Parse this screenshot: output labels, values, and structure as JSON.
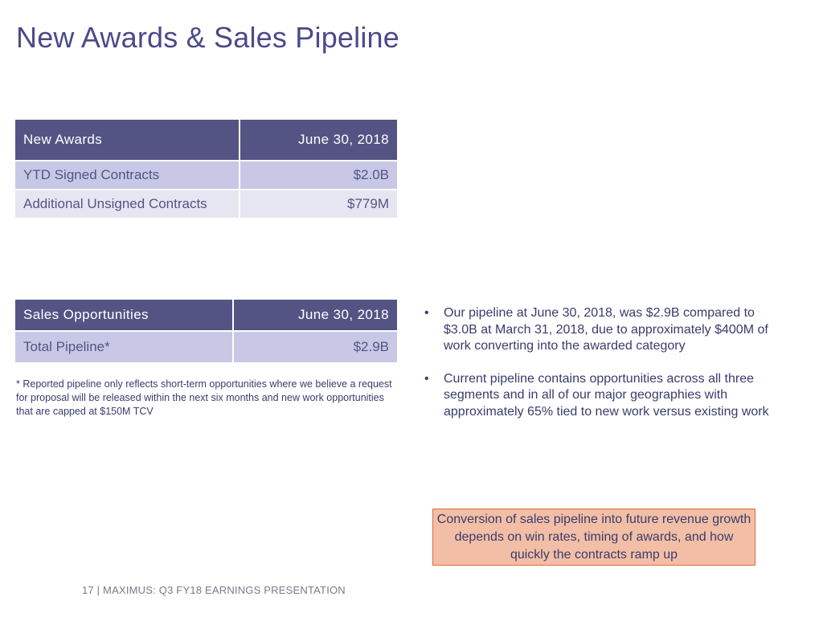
{
  "title": "New Awards & Sales Pipeline",
  "new_awards": {
    "headers": [
      "New Awards",
      "June 30, 2018"
    ],
    "rows": [
      {
        "label": "YTD Signed Contracts",
        "value": "$2.0B"
      },
      {
        "label": "Additional Unsigned Contracts",
        "value": "$779M"
      }
    ]
  },
  "sales_opportunities": {
    "headers": [
      "Sales Opportunities",
      "June 30, 2018"
    ],
    "rows": [
      {
        "label": "Total Pipeline*",
        "value": "$2.9B"
      }
    ]
  },
  "footnote": "* Reported pipeline only reflects short-term opportunities where we believe a request for proposal will be released within the next six months and new work opportunities that are capped at $150M TCV",
  "bullets": [
    "Our pipeline at June 30, 2018, was $2.9B compared to $3.0B at March 31, 2018, due to approximately $400M of work converting into the awarded category",
    "Current pipeline contains opportunities across all three segments and in all of our major geographies with approximately 65% tied to new work versus existing work"
  ],
  "bullet_glyph": "•",
  "callout": "Conversion of sales pipeline into future revenue growth depends on win rates, timing of awards, and how quickly the contracts ramp up",
  "footer": "17 | MAXIMUS: Q3 FY18 EARNINGS PRESENTATION",
  "colors": {
    "title": "#4a4a8a",
    "table_header": "#545484",
    "table_row": "#c8c8e6",
    "table_row_alt": "#e6e6f2",
    "callout_fill": "#f2bfa6",
    "callout_border": "#e0683a"
  }
}
